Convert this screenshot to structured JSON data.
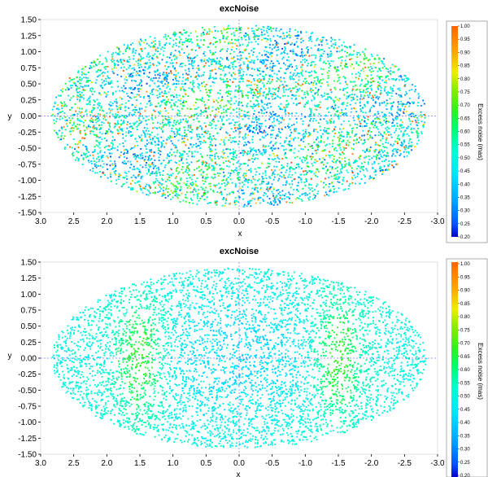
{
  "chart_data": [
    {
      "type": "scatter",
      "title": "excNoise",
      "xlabel": "x",
      "ylabel": "y",
      "xlim": [
        3.0,
        -3.0
      ],
      "ylim": [
        -1.5,
        1.5
      ],
      "x_ticks": [
        "3.0",
        "2.5",
        "2.0",
        "1.5",
        "1.0",
        "0.5",
        "0.0",
        "-0.5",
        "-1.0",
        "-1.5",
        "-2.0",
        "-2.5",
        "-3.0"
      ],
      "y_ticks": [
        "1.50",
        "1.25",
        "1.00",
        "0.75",
        "0.50",
        "0.25",
        "0.00",
        "-0.25",
        "-0.50",
        "-0.75",
        "-1.00",
        "-1.25",
        "-1.50"
      ],
      "projection": "Aitoff/Hammer ellipse, semi-axes 2.83 (x) by 1.41 (y)",
      "colorbar": {
        "label": "Excess noise (mas)",
        "min": 0.2,
        "max": 1.0,
        "ticks": [
          "1.00",
          "0.95",
          "0.90",
          "0.85",
          "0.80",
          "0.75",
          "0.70",
          "0.65",
          "0.60",
          "0.55",
          "0.50",
          "0.45",
          "0.40",
          "0.35",
          "0.30",
          "0.25",
          "0.20"
        ]
      },
      "value_summary": "mostly 0.40-0.60 with many high (0.80-1.00) points in swirl structures",
      "noise_level": "high"
    },
    {
      "type": "scatter",
      "title": "excNoise",
      "xlabel": "x",
      "ylabel": "y",
      "xlim": [
        3.0,
        -3.0
      ],
      "ylim": [
        -1.5,
        1.5
      ],
      "x_ticks": [
        "3.0",
        "2.5",
        "2.0",
        "1.5",
        "1.0",
        "0.5",
        "0.0",
        "-0.5",
        "-1.0",
        "-1.5",
        "-2.0",
        "-2.5",
        "-3.0"
      ],
      "y_ticks": [
        "1.50",
        "1.25",
        "1.00",
        "0.75",
        "0.50",
        "0.25",
        "0.00",
        "-0.25",
        "-0.50",
        "-0.75",
        "-1.00",
        "-1.25",
        "-1.50"
      ],
      "projection": "Aitoff/Hammer ellipse, semi-axes 2.83 (x) by 1.41 (y)",
      "colorbar": {
        "label": "Excess noise (mas)",
        "min": 0.2,
        "max": 1.0,
        "ticks": [
          "1.00",
          "0.95",
          "0.90",
          "0.85",
          "0.80",
          "0.75",
          "0.70",
          "0.65",
          "0.60",
          "0.55",
          "0.50",
          "0.45",
          "0.40",
          "0.35",
          "0.30",
          "0.25",
          "0.20"
        ]
      },
      "value_summary": "mostly 0.40-0.60, yellow bands (0.70-0.75) near x=+1.5 and x=-1.5",
      "noise_level": "low"
    }
  ],
  "colors": {
    "axis": "#000000",
    "crosshair": "#7777ff",
    "frame": "#999999"
  }
}
